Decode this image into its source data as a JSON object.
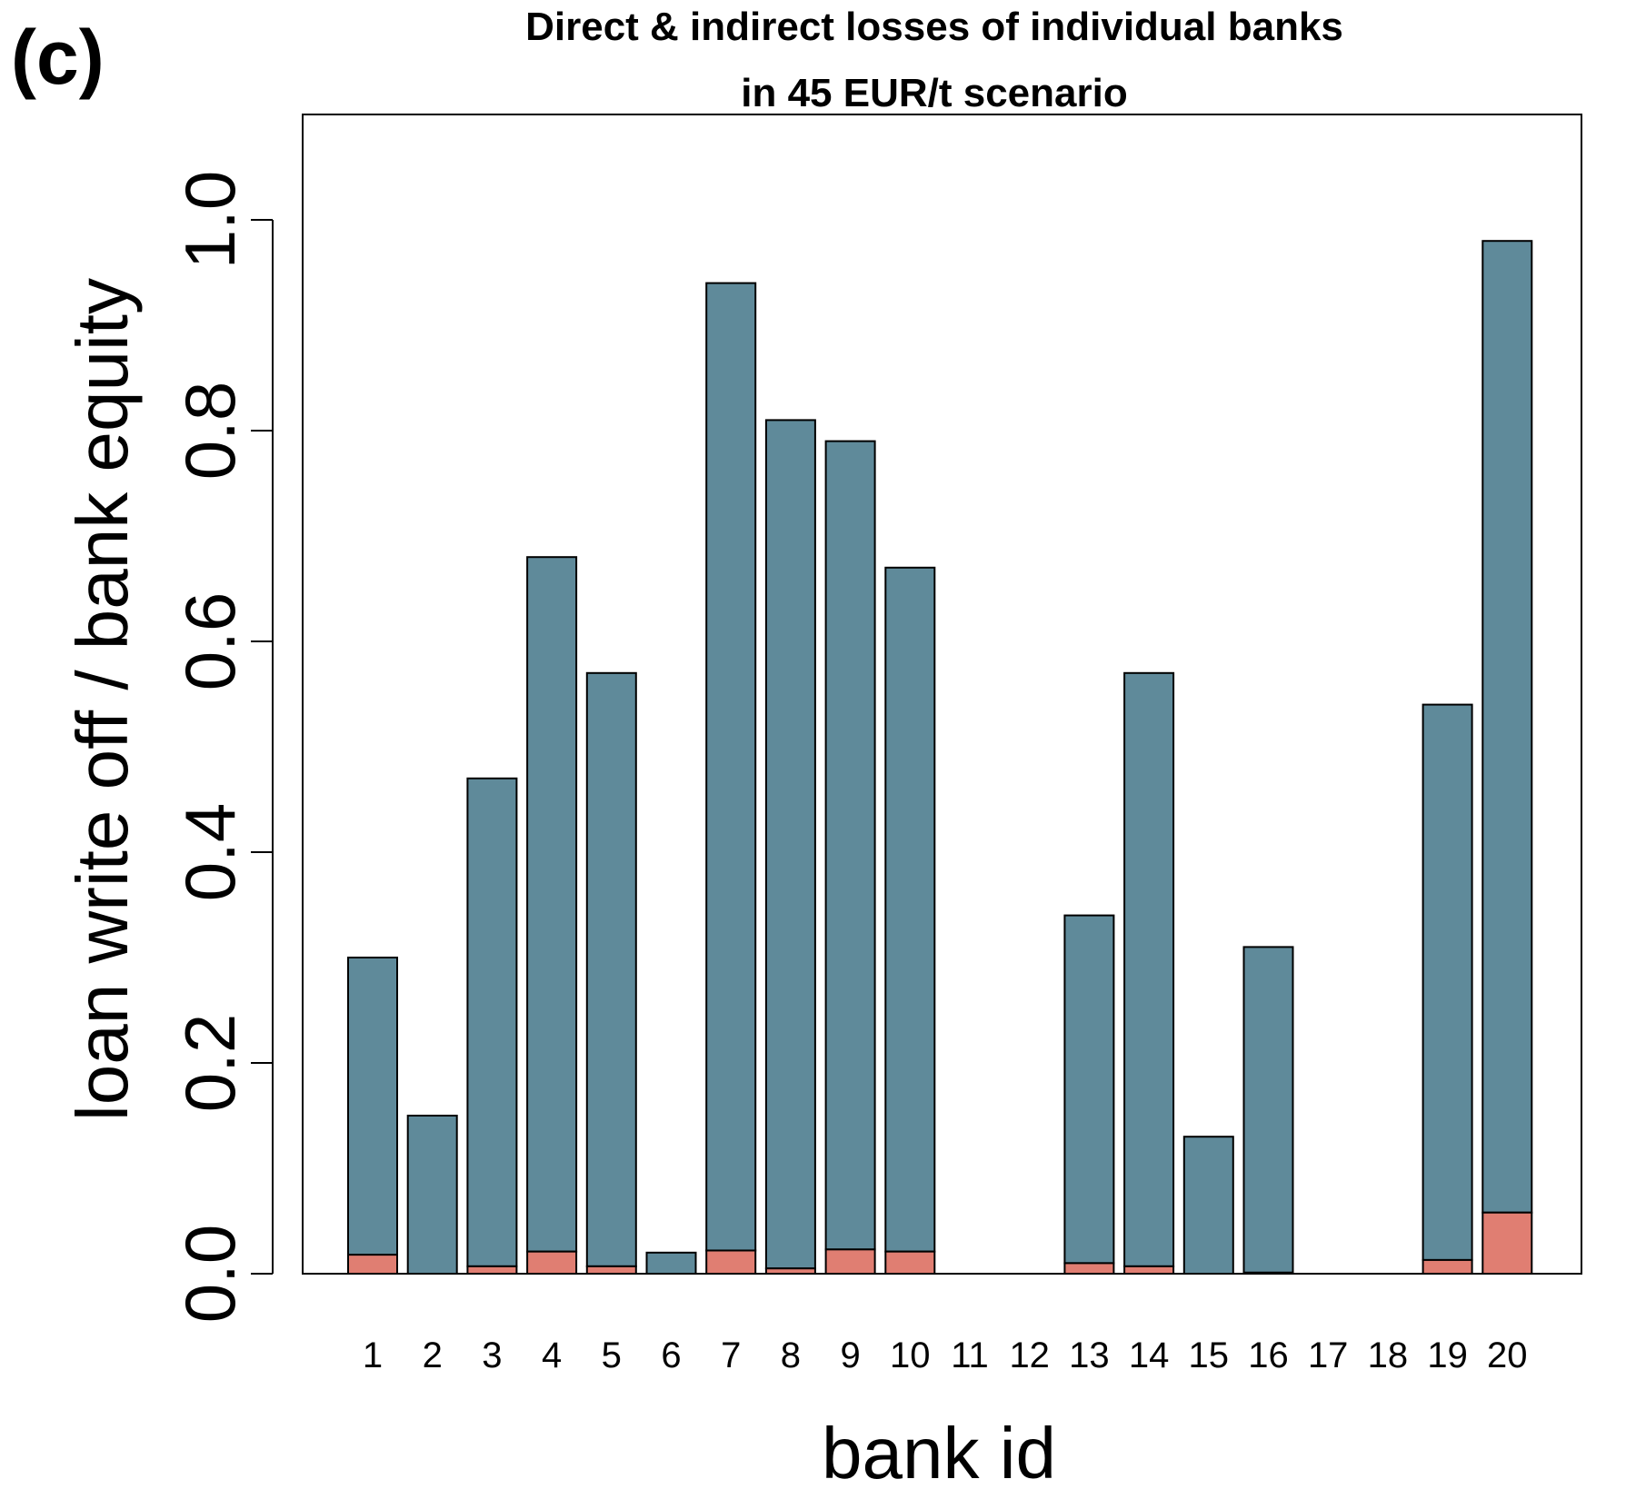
{
  "panel_label": "(c)",
  "chart_data": {
    "type": "bar",
    "stacked": true,
    "title": "Direct & indirect losses of individual banks",
    "subtitle": "in 45 EUR/t scenario",
    "xlabel": "bank id",
    "ylabel": "loan write off / bank equity",
    "ylim": [
      0,
      1.1
    ],
    "yticks": [
      "0.0",
      "0.2",
      "0.4",
      "0.6",
      "0.8",
      "1.0"
    ],
    "categories": [
      "1",
      "2",
      "3",
      "4",
      "5",
      "6",
      "7",
      "8",
      "9",
      "10",
      "11",
      "12",
      "13",
      "14",
      "15",
      "16",
      "17",
      "18",
      "19",
      "20"
    ],
    "totals": [
      0.3,
      0.15,
      0.47,
      0.68,
      0.57,
      0.02,
      0.94,
      0.81,
      0.79,
      0.67,
      0.0,
      0.0,
      0.34,
      0.57,
      0.13,
      0.31,
      0.0,
      0.0,
      0.54,
      0.98
    ],
    "series": [
      {
        "role": "lower",
        "color": "#E07E72",
        "values": [
          0.018,
          0.0,
          0.007,
          0.021,
          0.007,
          0.0,
          0.022,
          0.005,
          0.023,
          0.021,
          0.0,
          0.0,
          0.01,
          0.007,
          0.0,
          0.001,
          0.0,
          0.0,
          0.013,
          0.058
        ]
      },
      {
        "role": "upper",
        "color": "#5F8A9A",
        "values": [
          0.282,
          0.15,
          0.463,
          0.659,
          0.563,
          0.02,
          0.918,
          0.805,
          0.767,
          0.649,
          0.0,
          0.0,
          0.33,
          0.563,
          0.13,
          0.309,
          0.0,
          0.0,
          0.527,
          0.922
        ]
      }
    ],
    "grid": false,
    "legend": "none"
  }
}
